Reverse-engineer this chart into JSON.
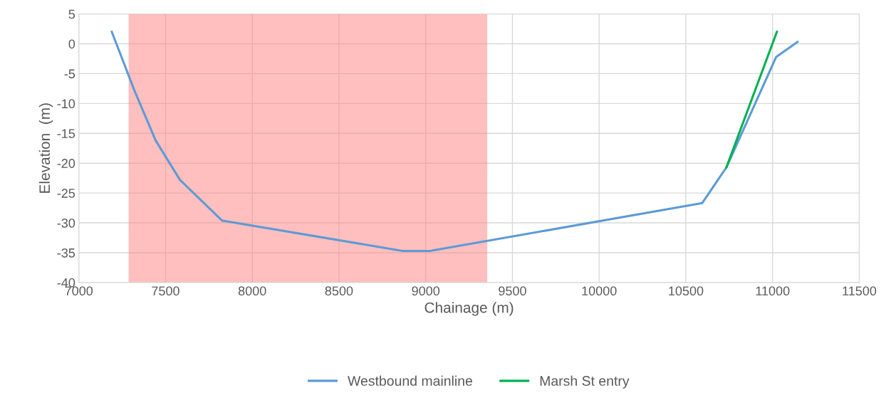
{
  "chart_data": {
    "type": "line",
    "xlabel": "Chainage (m)",
    "ylabel": "Elevation  (m)",
    "xlim": [
      7000,
      11500
    ],
    "xticks": [
      7000,
      7500,
      8000,
      8500,
      9000,
      9500,
      10000,
      10500,
      11000,
      11500
    ],
    "ylim": [
      -40,
      5
    ],
    "yticks": [
      -40,
      -35,
      -30,
      -25,
      -20,
      -15,
      -10,
      -5,
      0,
      5
    ],
    "grid": true,
    "legend": "bottom",
    "marker": "none",
    "line_style": "solid",
    "bands": [
      {
        "axis": "x",
        "from": 7287,
        "to": 9355,
        "color": "#ff8080"
      }
    ],
    "series": [
      {
        "name": "Westbound mainline",
        "color": "#5b9bd5",
        "x": [
          7190,
          7320,
          7443,
          7583,
          7825,
          8867,
          9023,
          10594,
          10734,
          11021,
          11144
        ],
        "values": [
          2.0,
          -7.8,
          -16.2,
          -22.8,
          -29.6,
          -34.7,
          -34.7,
          -26.7,
          -20.7,
          -2.2,
          0.3
        ]
      },
      {
        "name": "Marsh St entry",
        "color": "#00b050",
        "x": [
          10734,
          11025
        ],
        "values": [
          -20.7,
          2.0
        ]
      }
    ]
  }
}
